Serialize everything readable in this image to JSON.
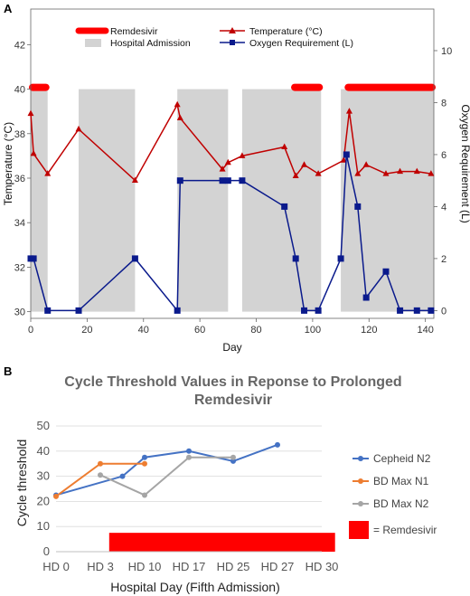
{
  "chart_data": [
    {
      "panel": "A",
      "type": "line",
      "xlabel": "Day",
      "ylabel": "Temperature (°C)",
      "y2label": "Oxygen Requirement (L)",
      "xlim": [
        0,
        143
      ],
      "ylim": [
        29.7,
        43.6
      ],
      "y2lim": [
        -0.3,
        11.6
      ],
      "x_ticks": [
        0,
        20,
        40,
        60,
        80,
        100,
        120,
        140
      ],
      "y_ticks": [
        30,
        32,
        34,
        36,
        38,
        40,
        42
      ],
      "y2_ticks": [
        0,
        2,
        4,
        6,
        8,
        10
      ],
      "legend": {
        "remdesivir": "Remdesivir",
        "hospital": "Hospital Admission",
        "temperature": "Temperature (°C)",
        "oxygen": "Oxygen Requirement (L)"
      },
      "hospital_admissions": [
        [
          0,
          6
        ],
        [
          17,
          37
        ],
        [
          52,
          70
        ],
        [
          75,
          103
        ],
        [
          110,
          143
        ]
      ],
      "remdesivir_periods": [
        [
          0,
          6
        ],
        [
          93,
          103
        ],
        [
          112,
          143
        ]
      ],
      "colors": {
        "temperature": "#c00000",
        "oxygen": "#0a1a8c",
        "remdesivir": "#ff0000",
        "hospital": "#d3d3d3"
      },
      "series": [
        {
          "name": "Temperature (°C)",
          "axis": "left",
          "x": [
            0,
            1,
            6,
            17,
            37,
            52,
            53,
            68,
            70,
            75,
            90,
            94,
            97,
            102,
            111,
            113,
            116,
            119,
            126,
            131,
            137,
            142
          ],
          "values": [
            38.9,
            37.1,
            36.2,
            38.2,
            35.9,
            39.3,
            38.7,
            36.4,
            36.7,
            37.0,
            37.4,
            36.1,
            36.6,
            36.2,
            36.8,
            39.0,
            36.2,
            36.6,
            36.2,
            36.3,
            36.3,
            36.2
          ]
        },
        {
          "name": "Oxygen Requirement (L)",
          "axis": "right",
          "x": [
            0,
            1,
            6,
            17,
            37,
            52,
            53,
            68,
            70,
            75,
            90,
            94,
            97,
            102,
            110,
            112,
            116,
            119,
            126,
            131,
            137,
            142
          ],
          "values": [
            2,
            2,
            0,
            0,
            2,
            0,
            5,
            5,
            5,
            5,
            4,
            2,
            0,
            0,
            2,
            6,
            4,
            0.5,
            1.5,
            0,
            0,
            0
          ]
        }
      ]
    },
    {
      "panel": "B",
      "type": "line",
      "title": "Cycle Threshold Values in Reponse to Prolonged Remdesivir",
      "title_lines": [
        "Cycle Threshold Values in Reponse to Prolonged",
        "Remdesivir"
      ],
      "xlabel": "Hospital Day (Fifth Admission)",
      "ylabel": "Cycle threshold",
      "categories": [
        "HD 0",
        "HD 3",
        "HD 10",
        "HD 17",
        "HD 25",
        "HD 27",
        "HD 30"
      ],
      "ylim": [
        0,
        50
      ],
      "y_ticks": [
        0,
        10,
        20,
        30,
        40,
        50
      ],
      "remdesivir_band": {
        "from_index": 1.2,
        "to_index": 6.3,
        "ymin": 0,
        "ymax": 7.5,
        "label": "= Remdesivir"
      },
      "series": [
        {
          "name": "Cepheid  N2",
          "color": "#4472c4",
          "x": [
            0,
            1.5,
            2.0,
            3.0,
            4.0,
            5.0
          ],
          "values": [
            22.5,
            30,
            37.5,
            40,
            36,
            42.5
          ]
        },
        {
          "name": "BD Max N1",
          "color": "#ed7d31",
          "x": [
            0,
            1,
            2.0
          ],
          "values": [
            22,
            35,
            35
          ]
        },
        {
          "name": "BD Max N2",
          "color": "#a5a5a5",
          "x": [
            1,
            2.0,
            3.0,
            4.0
          ],
          "values": [
            30.5,
            22.5,
            37.5,
            37.5
          ]
        }
      ]
    }
  ]
}
